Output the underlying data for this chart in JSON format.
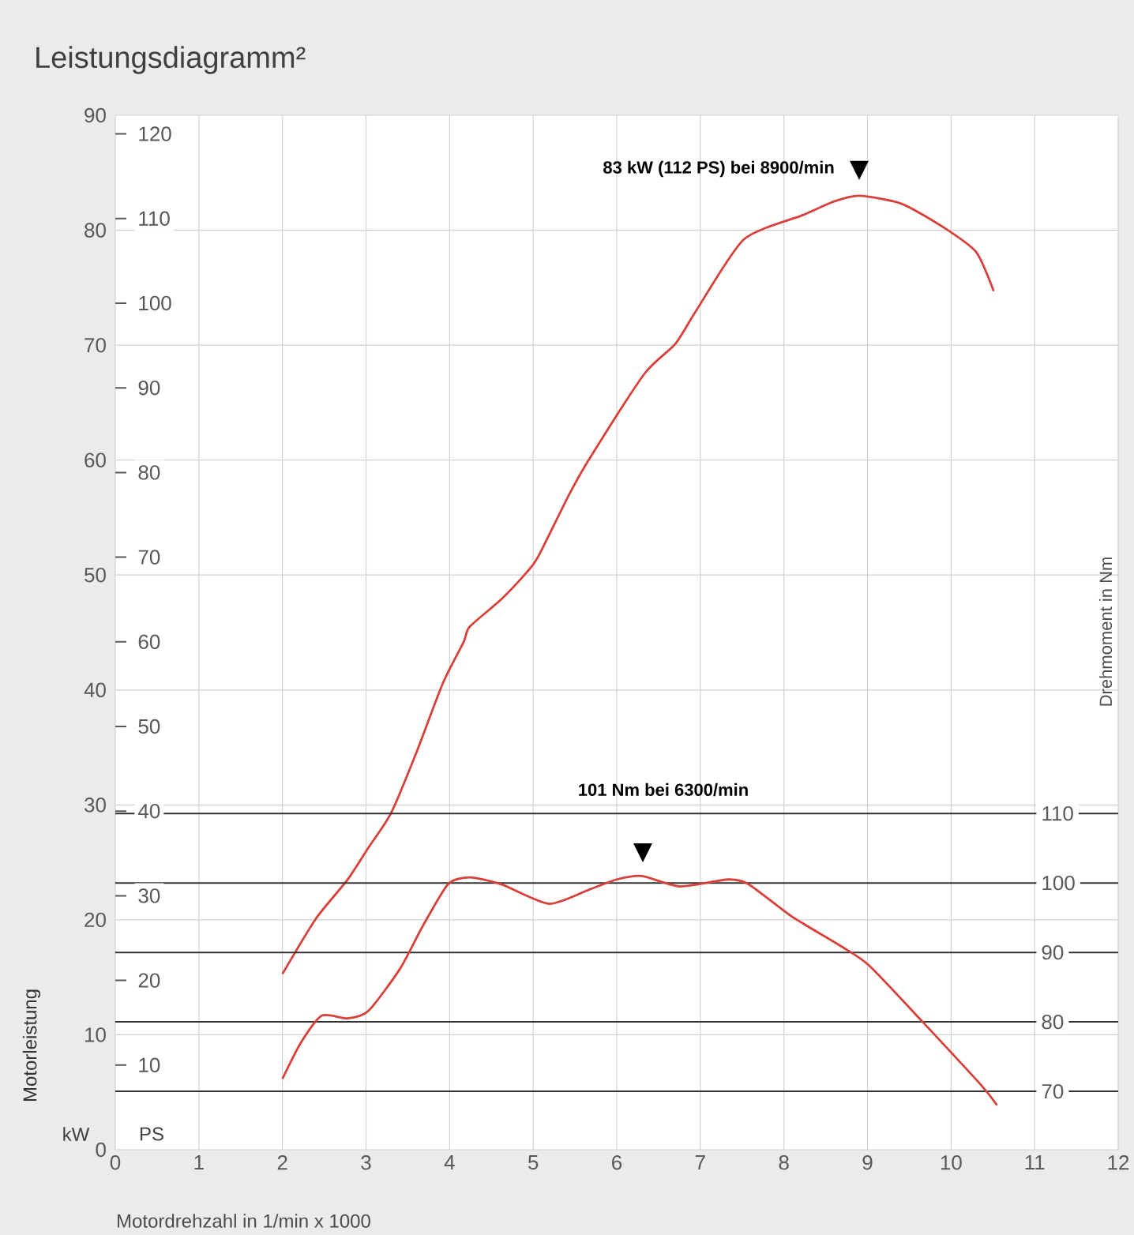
{
  "chart_data": {
    "type": "line",
    "title": "Leistungsdiagramm²",
    "xlabel": "Motordrehzahl in 1/min x 1000",
    "ylabel": "Motorleistung",
    "y2label": "Drehmoment in Nm",
    "xlim": [
      0,
      12
    ],
    "xticks": [
      0,
      1,
      2,
      3,
      4,
      5,
      6,
      7,
      8,
      9,
      10,
      11,
      12
    ],
    "ylim": [
      0,
      90
    ],
    "yticks": [
      0,
      10,
      20,
      30,
      40,
      50,
      60,
      70,
      80,
      90
    ],
    "y2lim": [
      61.6,
      210.5
    ],
    "y2ticks": [
      70,
      80,
      90,
      100,
      110
    ],
    "y3lim": [
      0,
      122.2
    ],
    "y3ticks": [
      10,
      20,
      30,
      40,
      50,
      60,
      70,
      80,
      90,
      100,
      110,
      120
    ],
    "grid": true,
    "series": [
      {
        "color": "#d8403a",
        "x": [
          2.0,
          2.4,
          2.78,
          3.03,
          3.3,
          3.6,
          3.92,
          4.17,
          4.24,
          4.62,
          4.93,
          5.06,
          5.43,
          5.68,
          6.33,
          6.7,
          6.95,
          7.52,
          8.22,
          8.6,
          8.9,
          9.41,
          9.92,
          10.3,
          10.51
        ],
        "values": [
          15.3,
          20.1,
          23.5,
          26.3,
          29.3,
          34.5,
          40.6,
          44.2,
          45.5,
          47.9,
          50.3,
          51.6,
          57,
          60.2,
          67.5,
          70.1,
          73,
          79.2,
          81.3,
          82.5,
          83,
          82.3,
          80.2,
          78.1,
          74.7
        ]
      },
      {
        "color": "#d8403a",
        "axis": "y2",
        "x": [
          2.0,
          2.22,
          2.47,
          2.78,
          3.03,
          3.41,
          3.67,
          3.98,
          4.24,
          4.62,
          5.19,
          5.68,
          6.0,
          6.3,
          6.76,
          7.33,
          7.58,
          8.09,
          8.71,
          9.03,
          9.66,
          10.36,
          10.55
        ],
        "values": [
          71.8,
          77,
          80.9,
          80.5,
          81.6,
          87.7,
          93.6,
          99.8,
          100.8,
          99.8,
          97,
          99.1,
          100.5,
          101,
          99.5,
          100.5,
          99.8,
          95.2,
          90.7,
          88,
          80,
          70.9,
          68
        ]
      }
    ],
    "annotations": [
      {
        "text": "83 kW (112 PS) bei 8900/min",
        "x": 8.9,
        "y": 83
      },
      "101 Nm bei 6300/min",
      "kW",
      "PS"
    ]
  }
}
